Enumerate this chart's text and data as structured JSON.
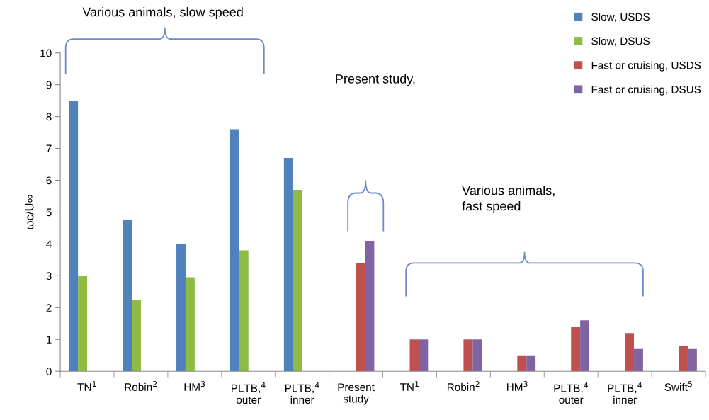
{
  "chart_data": {
    "type": "bar",
    "ylabel": "ωc/U∞",
    "categories": [
      "TN$^{1}$",
      "Robin$^{2}$",
      "HM$^{3}$",
      "PLTB,$^{4}$\nouter",
      "PLTB,$^{4}$\ninner",
      "Present\nstudy",
      "TN$^{1}$",
      "Robin$^{2}$",
      "HM$^{3}$",
      "PLTB,$^{4}$\nouter",
      "PLTB,$^{4}$\ninner",
      "Swift$^{5}$"
    ],
    "series": [
      {
        "name": "Slow, USDS",
        "color": "#4f81bd",
        "values": [
          8.5,
          4.75,
          4.0,
          7.6,
          6.7,
          null,
          null,
          null,
          null,
          null,
          null,
          null
        ]
      },
      {
        "name": "Slow, DSUS",
        "color": "#8dbb44",
        "values": [
          3.0,
          2.25,
          2.95,
          3.8,
          5.7,
          null,
          null,
          null,
          null,
          null,
          null,
          null
        ]
      },
      {
        "name": "Fast or cruising, USDS",
        "color": "#c0504d",
        "values": [
          null,
          null,
          null,
          null,
          null,
          3.4,
          1.0,
          1.0,
          0.5,
          1.4,
          1.2,
          0.8
        ]
      },
      {
        "name": "Fast or cruising, DSUS",
        "color": "#8064a2",
        "values": [
          null,
          null,
          null,
          null,
          null,
          4.1,
          1.0,
          1.0,
          0.5,
          1.6,
          0.7,
          0.7
        ]
      }
    ],
    "ylim": [
      0,
      10
    ],
    "yticks": [
      0,
      1,
      2,
      3,
      4,
      5,
      6,
      7,
      8,
      9,
      10
    ],
    "annotations": [
      "Various animals, slow speed",
      "Present study,",
      "Various animals,\nfast speed"
    ],
    "grid": false,
    "legend": "top right"
  }
}
